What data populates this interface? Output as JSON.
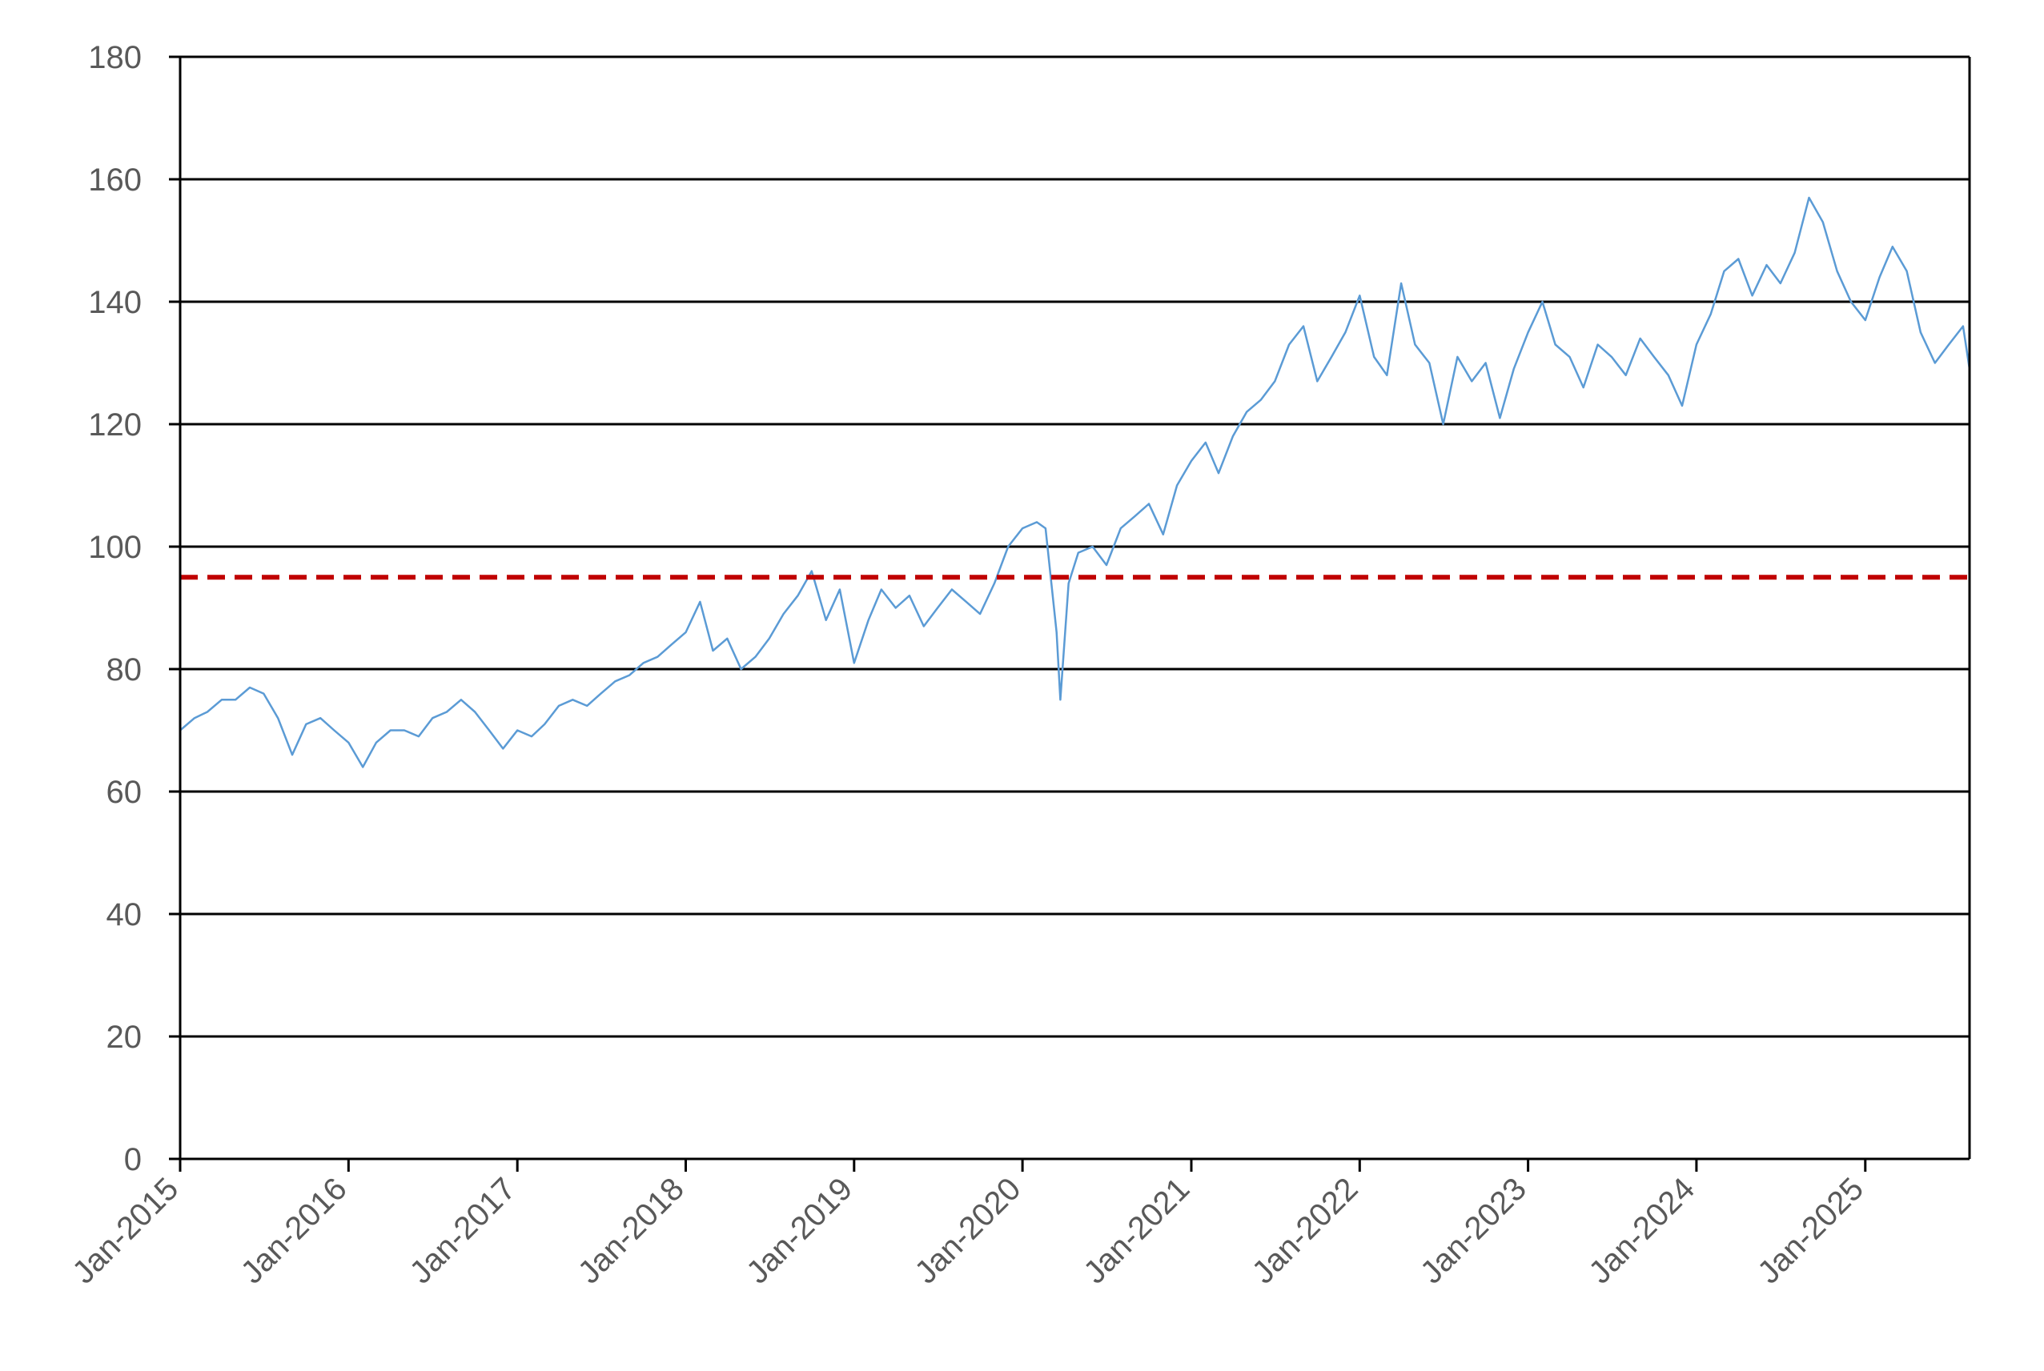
{
  "chart_data": {
    "type": "line",
    "title": "",
    "xlabel": "",
    "ylabel": "",
    "ylim": [
      0,
      180
    ],
    "yticks": [
      0,
      20,
      40,
      60,
      80,
      100,
      120,
      140,
      160,
      180
    ],
    "xlim": [
      "2015-01-01",
      "2025-08-15"
    ],
    "xticks": [
      {
        "date": "2015-01-01",
        "label": "Jan-2015"
      },
      {
        "date": "2016-01-01",
        "label": "Jan-2016"
      },
      {
        "date": "2017-01-01",
        "label": "Jan-2017"
      },
      {
        "date": "2018-01-01",
        "label": "Jan-2018"
      },
      {
        "date": "2019-01-01",
        "label": "Jan-2019"
      },
      {
        "date": "2020-01-01",
        "label": "Jan-2020"
      },
      {
        "date": "2021-01-01",
        "label": "Jan-2021"
      },
      {
        "date": "2022-01-01",
        "label": "Jan-2022"
      },
      {
        "date": "2023-01-01",
        "label": "Jan-2023"
      },
      {
        "date": "2024-01-01",
        "label": "Jan-2024"
      },
      {
        "date": "2025-01-01",
        "label": "Jan-2025"
      }
    ],
    "grid": "horizontal",
    "legend": "none",
    "series": [
      {
        "color": "#5b9bd5",
        "points": [
          [
            "2015-01-01",
            70
          ],
          [
            "2015-02-01",
            72
          ],
          [
            "2015-03-01",
            73
          ],
          [
            "2015-04-01",
            75
          ],
          [
            "2015-05-01",
            75
          ],
          [
            "2015-06-01",
            77
          ],
          [
            "2015-07-01",
            76
          ],
          [
            "2015-08-01",
            72
          ],
          [
            "2015-09-01",
            66
          ],
          [
            "2015-10-01",
            71
          ],
          [
            "2015-11-01",
            72
          ],
          [
            "2015-12-01",
            70
          ],
          [
            "2016-01-01",
            68
          ],
          [
            "2016-02-01",
            64
          ],
          [
            "2016-03-01",
            68
          ],
          [
            "2016-04-01",
            70
          ],
          [
            "2016-05-01",
            70
          ],
          [
            "2016-06-01",
            69
          ],
          [
            "2016-07-01",
            72
          ],
          [
            "2016-08-01",
            73
          ],
          [
            "2016-09-01",
            75
          ],
          [
            "2016-10-01",
            73
          ],
          [
            "2016-11-01",
            70
          ],
          [
            "2016-12-01",
            67
          ],
          [
            "2017-01-01",
            70
          ],
          [
            "2017-02-01",
            69
          ],
          [
            "2017-03-01",
            71
          ],
          [
            "2017-04-01",
            74
          ],
          [
            "2017-05-01",
            75
          ],
          [
            "2017-06-01",
            74
          ],
          [
            "2017-07-01",
            76
          ],
          [
            "2017-08-01",
            78
          ],
          [
            "2017-09-01",
            79
          ],
          [
            "2017-10-01",
            81
          ],
          [
            "2017-11-01",
            82
          ],
          [
            "2017-12-01",
            84
          ],
          [
            "2018-01-01",
            86
          ],
          [
            "2018-02-01",
            91
          ],
          [
            "2018-03-01",
            83
          ],
          [
            "2018-04-01",
            85
          ],
          [
            "2018-05-01",
            80
          ],
          [
            "2018-06-01",
            82
          ],
          [
            "2018-07-01",
            85
          ],
          [
            "2018-08-01",
            89
          ],
          [
            "2018-09-01",
            92
          ],
          [
            "2018-10-01",
            96
          ],
          [
            "2018-11-01",
            88
          ],
          [
            "2018-12-01",
            93
          ],
          [
            "2019-01-01",
            81
          ],
          [
            "2019-02-01",
            88
          ],
          [
            "2019-03-01",
            93
          ],
          [
            "2019-04-01",
            90
          ],
          [
            "2019-05-01",
            92
          ],
          [
            "2019-06-01",
            87
          ],
          [
            "2019-07-01",
            90
          ],
          [
            "2019-08-01",
            93
          ],
          [
            "2019-09-01",
            91
          ],
          [
            "2019-10-01",
            89
          ],
          [
            "2019-11-01",
            94
          ],
          [
            "2019-12-01",
            100
          ],
          [
            "2020-01-01",
            103
          ],
          [
            "2020-02-01",
            104
          ],
          [
            "2020-02-20",
            103
          ],
          [
            "2020-03-15",
            86
          ],
          [
            "2020-03-23",
            75
          ],
          [
            "2020-04-10",
            94
          ],
          [
            "2020-05-01",
            99
          ],
          [
            "2020-06-01",
            100
          ],
          [
            "2020-07-01",
            97
          ],
          [
            "2020-08-01",
            103
          ],
          [
            "2020-09-01",
            105
          ],
          [
            "2020-10-01",
            107
          ],
          [
            "2020-11-01",
            102
          ],
          [
            "2020-12-01",
            110
          ],
          [
            "2021-01-01",
            114
          ],
          [
            "2021-02-01",
            117
          ],
          [
            "2021-03-01",
            112
          ],
          [
            "2021-04-01",
            118
          ],
          [
            "2021-05-01",
            122
          ],
          [
            "2021-06-01",
            124
          ],
          [
            "2021-07-01",
            127
          ],
          [
            "2021-08-01",
            133
          ],
          [
            "2021-09-01",
            136
          ],
          [
            "2021-10-01",
            127
          ],
          [
            "2021-11-01",
            131
          ],
          [
            "2021-12-01",
            135
          ],
          [
            "2022-01-01",
            141
          ],
          [
            "2022-02-01",
            131
          ],
          [
            "2022-03-01",
            128
          ],
          [
            "2022-04-01",
            143
          ],
          [
            "2022-05-01",
            133
          ],
          [
            "2022-06-01",
            130
          ],
          [
            "2022-07-01",
            120
          ],
          [
            "2022-08-01",
            131
          ],
          [
            "2022-09-01",
            127
          ],
          [
            "2022-10-01",
            130
          ],
          [
            "2022-11-01",
            121
          ],
          [
            "2022-12-01",
            129
          ],
          [
            "2023-01-01",
            135
          ],
          [
            "2023-02-01",
            140
          ],
          [
            "2023-03-01",
            133
          ],
          [
            "2023-04-01",
            131
          ],
          [
            "2023-05-01",
            126
          ],
          [
            "2023-06-01",
            133
          ],
          [
            "2023-07-01",
            131
          ],
          [
            "2023-08-01",
            128
          ],
          [
            "2023-09-01",
            134
          ],
          [
            "2023-10-01",
            131
          ],
          [
            "2023-11-01",
            128
          ],
          [
            "2023-12-01",
            123
          ],
          [
            "2024-01-01",
            133
          ],
          [
            "2024-02-01",
            138
          ],
          [
            "2024-03-01",
            145
          ],
          [
            "2024-04-01",
            147
          ],
          [
            "2024-05-01",
            141
          ],
          [
            "2024-06-01",
            146
          ],
          [
            "2024-07-01",
            143
          ],
          [
            "2024-08-01",
            148
          ],
          [
            "2024-09-01",
            157
          ],
          [
            "2024-10-01",
            153
          ],
          [
            "2024-11-01",
            145
          ],
          [
            "2024-12-01",
            140
          ],
          [
            "2025-01-01",
            137
          ],
          [
            "2025-02-01",
            144
          ],
          [
            "2025-03-01",
            149
          ],
          [
            "2025-04-01",
            145
          ],
          [
            "2025-05-01",
            135
          ],
          [
            "2025-06-01",
            130
          ],
          [
            "2025-07-01",
            133
          ],
          [
            "2025-08-01",
            136
          ],
          [
            "2025-08-15",
            129
          ]
        ]
      },
      {
        "color": "#c00000",
        "style": "dashed",
        "points": [
          [
            "2015-01-01",
            95
          ],
          [
            "2025-08-15",
            95
          ]
        ]
      }
    ]
  }
}
